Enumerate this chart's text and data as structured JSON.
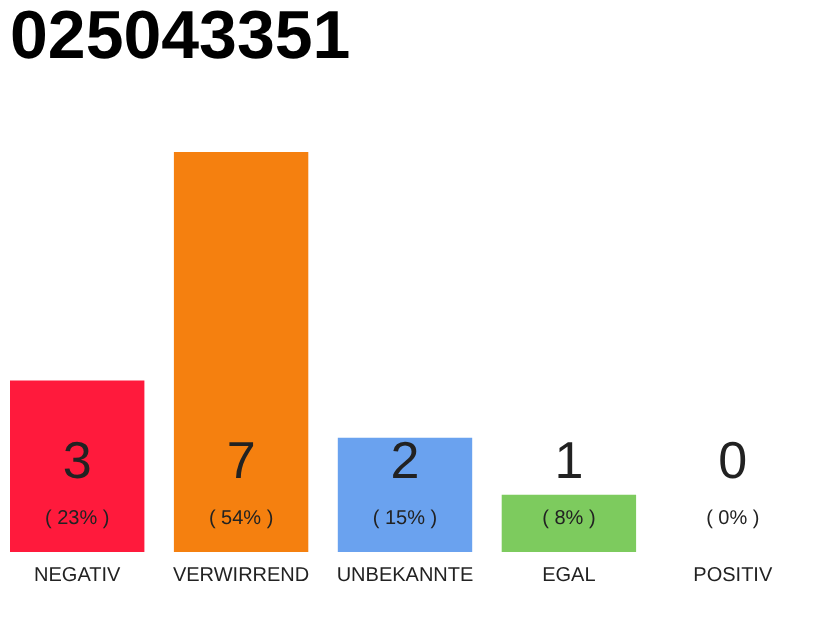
{
  "chart_data": {
    "type": "bar",
    "title": "025043351",
    "categories": [
      "NEGATIV",
      "VERWIRREND",
      "UNBEKANNTE",
      "EGAL",
      "POSITIV"
    ],
    "values": [
      3,
      7,
      2,
      1,
      0
    ],
    "colors": [
      "#ff1a3c",
      "#f5800f",
      "#6aa2ef",
      "#7dcb5e",
      "#cccccc"
    ],
    "data_labels": true,
    "annotations": [
      "( 23% )",
      "( 54% )",
      "( 15% )",
      "( 8% )",
      "( 0% )"
    ]
  }
}
